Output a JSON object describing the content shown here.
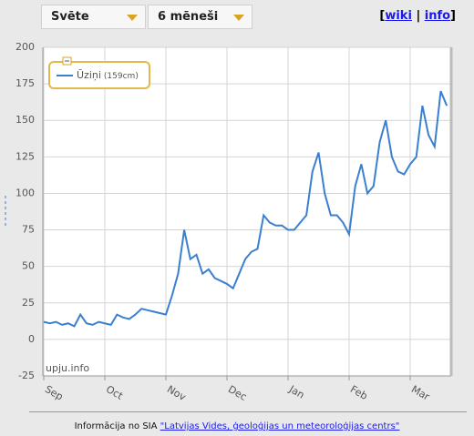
{
  "controls": {
    "river": "Svēte",
    "period": "6 mēneši"
  },
  "links": [
    "wiki",
    "info"
  ],
  "footer": {
    "text": "Informācija no SIA",
    "link": "\"Latvijas Vides, ģeoloģijas un meteoroloģijas centrs\""
  },
  "chart_data": {
    "type": "line",
    "watermark": "upju.info",
    "legend_note": "(159cm)",
    "categories": [
      "Sep",
      null,
      null,
      null,
      null,
      null,
      null,
      null,
      null,
      null,
      "Oct",
      null,
      null,
      null,
      null,
      null,
      null,
      null,
      null,
      null,
      "Nov",
      null,
      null,
      null,
      null,
      null,
      null,
      null,
      null,
      null,
      "Dec",
      null,
      null,
      null,
      null,
      null,
      null,
      null,
      null,
      null,
      "Jan",
      null,
      null,
      null,
      null,
      null,
      null,
      null,
      null,
      null,
      "Feb",
      null,
      null,
      null,
      null,
      null,
      null,
      null,
      null,
      null,
      "Mar",
      null,
      null,
      null,
      null,
      null,
      null
    ],
    "series": [
      {
        "name": "Ūziņi",
        "color": "#3a7fd0",
        "values": [
          12,
          11,
          12,
          10,
          11,
          9,
          17,
          11,
          10,
          12,
          11,
          10,
          17,
          15,
          14,
          17,
          21,
          20,
          19,
          18,
          17,
          30,
          45,
          75,
          55,
          58,
          45,
          48,
          42,
          40,
          38,
          35,
          45,
          55,
          60,
          62,
          85,
          80,
          78,
          78,
          75,
          75,
          80,
          85,
          115,
          128,
          100,
          85,
          85,
          80,
          72,
          105,
          120,
          100,
          105,
          135,
          150,
          125,
          115,
          113,
          120,
          125,
          160,
          140,
          132,
          170,
          160
        ]
      }
    ],
    "ylim": [
      -25,
      200
    ],
    "yticks": [
      -25,
      0,
      25,
      50,
      75,
      100,
      125,
      150,
      175,
      200
    ],
    "grid": true,
    "legend": "upper left"
  }
}
